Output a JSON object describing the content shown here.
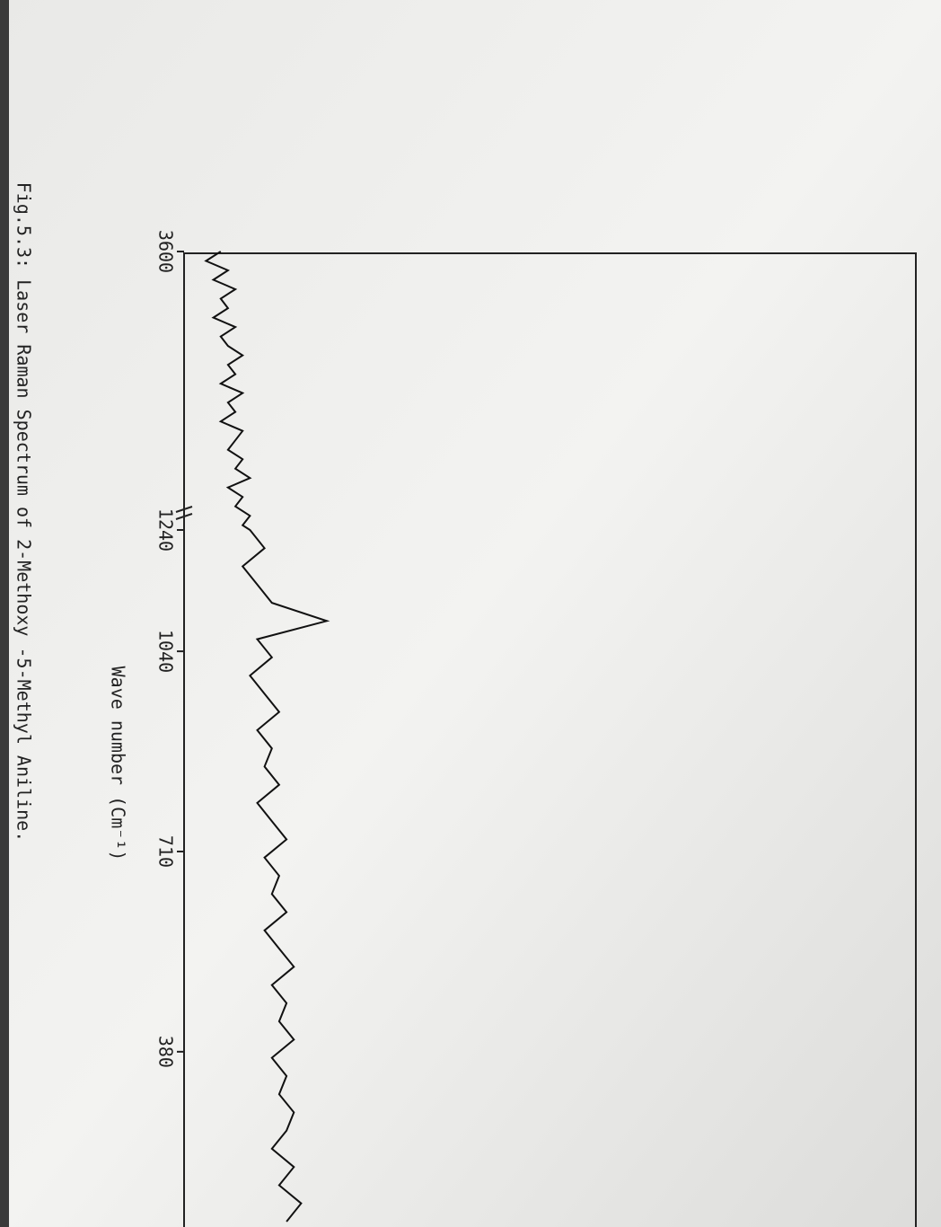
{
  "chart_data": {
    "type": "line",
    "title": "Fig.5.3: Laser Raman Spectrum  of  2-Methoxy -5-Methyl Aniline.",
    "x_label": "Wave number (Cm⁻¹)",
    "xlim": [
      3600,
      100
    ],
    "x_break": 1240,
    "xticks": [
      3600,
      1240,
      1040,
      710,
      380
    ],
    "ylim": [
      0,
      100
    ],
    "color": "#111111",
    "x": [
      3600,
      3520,
      3440,
      3360,
      3280,
      3200,
      3120,
      3040,
      2960,
      2880,
      2800,
      2720,
      2640,
      2560,
      2480,
      2400,
      2320,
      2240,
      2160,
      2080,
      2000,
      1920,
      1840,
      1760,
      1680,
      1600,
      1520,
      1440,
      1360,
      1280,
      1240,
      1210,
      1180,
      1150,
      1120,
      1090,
      1060,
      1030,
      1000,
      970,
      940,
      910,
      880,
      850,
      820,
      790,
      760,
      730,
      700,
      670,
      640,
      610,
      580,
      550,
      520,
      490,
      460,
      430,
      400,
      370,
      340,
      310,
      280,
      250,
      220,
      190,
      160,
      130,
      100
    ],
    "values": [
      5,
      3,
      6,
      4,
      7,
      5,
      6,
      4,
      7,
      5,
      6,
      8,
      6,
      7,
      5,
      8,
      6,
      7,
      5,
      8,
      7,
      6,
      8,
      7,
      9,
      6,
      8,
      7,
      9,
      8,
      9,
      11,
      8,
      10,
      12,
      19.5,
      10,
      12,
      9,
      11,
      13,
      10,
      12,
      11,
      13,
      10,
      12,
      14,
      11,
      13,
      12,
      14,
      11,
      13,
      15,
      12,
      14,
      13,
      15,
      12,
      14,
      13,
      15,
      14,
      12,
      15,
      13,
      16,
      14
    ]
  }
}
